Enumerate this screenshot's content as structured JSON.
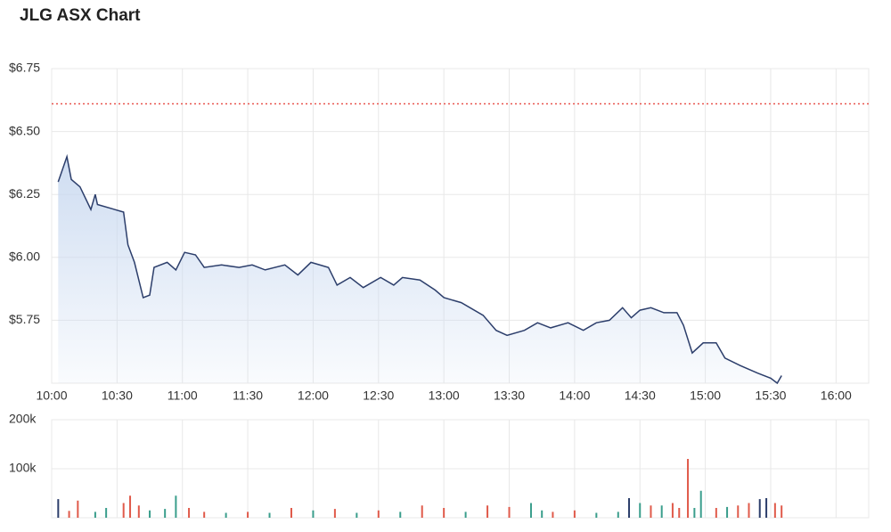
{
  "chart_data": [
    {
      "type": "line",
      "title": "JLG ASX Chart",
      "color": "#2c3e6b",
      "fill": "#c9d9f0",
      "x": [
        "10:03",
        "10:07",
        "10:09",
        "10:13",
        "10:18",
        "10:20",
        "10:21",
        "10:33",
        "10:35",
        "10:38",
        "10:42",
        "10:45",
        "10:47",
        "10:53",
        "10:57",
        "11:01",
        "11:06",
        "11:10",
        "11:18",
        "11:26",
        "11:32",
        "11:38",
        "11:47",
        "11:53",
        "11:59",
        "12:07",
        "12:11",
        "12:17",
        "12:23",
        "12:31",
        "12:37",
        "12:41",
        "12:49",
        "12:56",
        "13:00",
        "13:08",
        "13:18",
        "13:24",
        "13:29",
        "13:37",
        "13:43",
        "13:49",
        "13:57",
        "14:04",
        "14:10",
        "14:16",
        "14:22",
        "14:26",
        "14:30",
        "14:35",
        "14:41",
        "14:47",
        "14:50",
        "14:54",
        "14:59",
        "15:05",
        "15:09",
        "15:16",
        "15:24",
        "15:30",
        "15:33",
        "15:35"
      ],
      "values": [
        6.3,
        6.4,
        6.31,
        6.28,
        6.19,
        6.25,
        6.21,
        6.18,
        6.05,
        5.98,
        5.84,
        5.85,
        5.96,
        5.98,
        5.95,
        6.02,
        6.01,
        5.96,
        5.97,
        5.96,
        5.97,
        5.95,
        5.97,
        5.93,
        5.98,
        5.96,
        5.89,
        5.92,
        5.88,
        5.92,
        5.89,
        5.92,
        5.91,
        5.87,
        5.84,
        5.82,
        5.77,
        5.71,
        5.69,
        5.71,
        5.74,
        5.72,
        5.74,
        5.71,
        5.74,
        5.75,
        5.8,
        5.76,
        5.79,
        5.8,
        5.78,
        5.78,
        5.73,
        5.62,
        5.66,
        5.66,
        5.6,
        5.57,
        5.54,
        5.52,
        5.5,
        5.53
      ],
      "reference_line": 6.61,
      "reference_color": "#e8554e",
      "xlim": [
        "10:00",
        "16:15"
      ],
      "xticks": [
        "10:00",
        "10:30",
        "11:00",
        "11:30",
        "12:00",
        "12:30",
        "13:00",
        "13:30",
        "14:00",
        "14:30",
        "15:00",
        "15:30",
        "16:00"
      ],
      "ylim": [
        5.5,
        6.75
      ],
      "yticks": [
        {
          "value": 5.75,
          "label": "$5.75"
        },
        {
          "value": 6.0,
          "label": "$6.00"
        },
        {
          "value": 6.25,
          "label": "$6.25"
        },
        {
          "value": 6.5,
          "label": "$6.50"
        },
        {
          "value": 6.75,
          "label": "$6.75"
        }
      ],
      "grid": true
    },
    {
      "type": "bar",
      "x": [
        "10:03",
        "10:08",
        "10:12",
        "10:20",
        "10:25",
        "10:33",
        "10:36",
        "10:40",
        "10:45",
        "10:52",
        "10:57",
        "11:03",
        "11:10",
        "11:20",
        "11:30",
        "11:40",
        "11:50",
        "12:00",
        "12:10",
        "12:20",
        "12:30",
        "12:40",
        "12:50",
        "13:00",
        "13:10",
        "13:20",
        "13:30",
        "13:40",
        "13:45",
        "13:50",
        "14:00",
        "14:10",
        "14:20",
        "14:25",
        "14:30",
        "14:35",
        "14:40",
        "14:45",
        "14:48",
        "14:52",
        "14:55",
        "14:58",
        "15:05",
        "15:10",
        "15:15",
        "15:20",
        "15:25",
        "15:28",
        "15:32",
        "15:35"
      ],
      "values": [
        38000,
        14000,
        35000,
        12000,
        20000,
        30000,
        45000,
        25000,
        15000,
        18000,
        45000,
        20000,
        12000,
        10000,
        12000,
        10000,
        20000,
        15000,
        18000,
        10000,
        15000,
        12000,
        25000,
        20000,
        12000,
        25000,
        22000,
        30000,
        15000,
        12000,
        15000,
        10000,
        12000,
        40000,
        30000,
        25000,
        25000,
        30000,
        20000,
        120000,
        20000,
        55000,
        20000,
        22000,
        25000,
        30000,
        38000,
        40000,
        30000,
        25000
      ],
      "colors": [
        "#2c3e6b",
        "#e05a4a",
        "#e05a4a",
        "#3a9e8c",
        "#3a9e8c",
        "#e05a4a",
        "#e05a4a",
        "#e05a4a",
        "#3a9e8c",
        "#3a9e8c",
        "#3a9e8c",
        "#e05a4a",
        "#e05a4a",
        "#3a9e8c",
        "#e05a4a",
        "#3a9e8c",
        "#e05a4a",
        "#3a9e8c",
        "#e05a4a",
        "#3a9e8c",
        "#e05a4a",
        "#3a9e8c",
        "#e05a4a",
        "#e05a4a",
        "#3a9e8c",
        "#e05a4a",
        "#e05a4a",
        "#3a9e8c",
        "#3a9e8c",
        "#e05a4a",
        "#e05a4a",
        "#3a9e8c",
        "#3a9e8c",
        "#2c3e6b",
        "#3a9e8c",
        "#e05a4a",
        "#3a9e8c",
        "#e05a4a",
        "#e05a4a",
        "#e05a4a",
        "#3a9e8c",
        "#3a9e8c",
        "#e05a4a",
        "#3a9e8c",
        "#e05a4a",
        "#e05a4a",
        "#2c3e6b",
        "#2c3e6b",
        "#e05a4a",
        "#e05a4a"
      ],
      "xlim": [
        "10:00",
        "16:15"
      ],
      "xticks": [
        "10:00",
        "10:30",
        "11:00",
        "11:30",
        "12:00",
        "12:30",
        "13:00",
        "13:30",
        "14:00",
        "14:30",
        "15:00",
        "15:30",
        "16:00"
      ],
      "ylim": [
        0,
        200000
      ],
      "yticks": [
        {
          "value": 100000,
          "label": "100k"
        },
        {
          "value": 200000,
          "label": "200k"
        }
      ],
      "grid": true
    }
  ]
}
